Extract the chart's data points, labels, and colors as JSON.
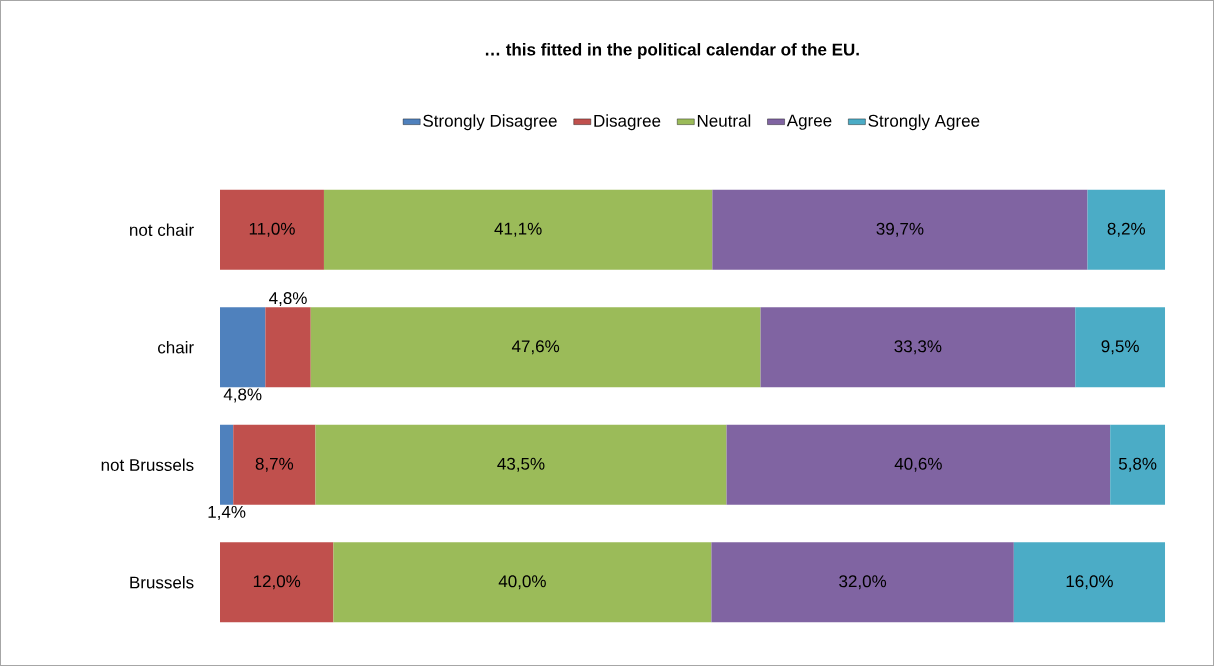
{
  "chart_data": {
    "type": "bar",
    "orientation": "horizontal",
    "stacked": true,
    "title": "… this fitted in the political calendar of the EU.",
    "legend": "top",
    "categories": [
      "not chair",
      "chair",
      "not Brussels",
      "Brussels"
    ],
    "series": [
      {
        "name": "Strongly Disagree",
        "color": "#4f81bd",
        "values": [
          null,
          4.8,
          1.4,
          null
        ],
        "value_labels": [
          null,
          "4,8%",
          "1,4%",
          null
        ]
      },
      {
        "name": "Disagree",
        "color": "#c0504d",
        "values": [
          11.0,
          4.8,
          8.7,
          12.0
        ],
        "value_labels": [
          "11,0%",
          "4,8%",
          "8,7%",
          "12,0%"
        ]
      },
      {
        "name": "Neutral",
        "color": "#9bbb59",
        "values": [
          41.1,
          47.6,
          43.5,
          40.0
        ],
        "value_labels": [
          "41,1%",
          "47,6%",
          "43,5%",
          "40,0%"
        ]
      },
      {
        "name": "Agree",
        "color": "#8064a2",
        "values": [
          39.7,
          33.3,
          40.6,
          32.0
        ],
        "value_labels": [
          "39,7%",
          "33,3%",
          "40,6%",
          "32,0%"
        ]
      },
      {
        "name": "Strongly Agree",
        "color": "#4bacc6",
        "values": [
          8.2,
          9.5,
          5.8,
          16.0
        ],
        "value_labels": [
          "8,2%",
          "9,5%",
          "5,8%",
          "16,0%"
        ]
      }
    ]
  }
}
